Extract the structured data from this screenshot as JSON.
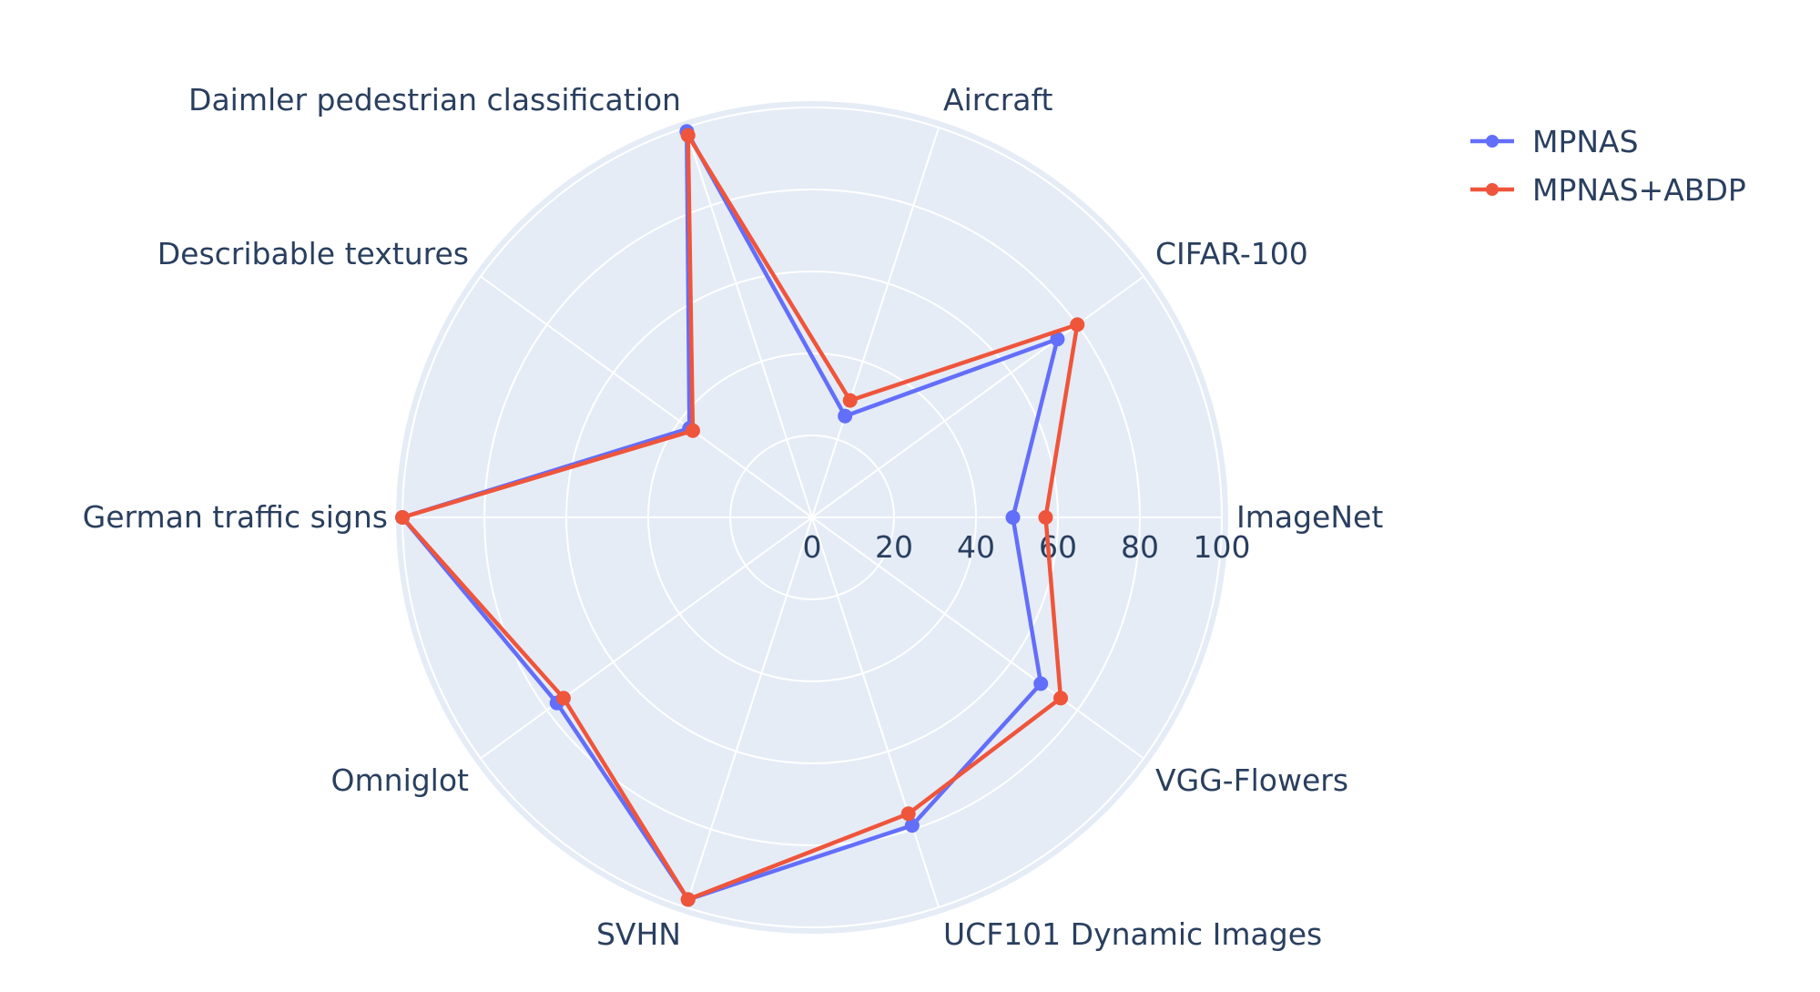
{
  "chart_data": {
    "type": "radar",
    "theta_labels": [
      "ImageNet",
      "CIFAR-100",
      "Aircraft",
      "Daimler pedestrian classification",
      "Describable textures",
      "German traffic signs",
      "Omniglot",
      "SVHN",
      "UCF101 Dynamic Images",
      "VGG-Flowers"
    ],
    "radial_ticks": [
      "0",
      "20",
      "40",
      "60",
      "80",
      "100"
    ],
    "radial_range": [
      0,
      100
    ],
    "series": [
      {
        "name": "MPNAS",
        "color": "#636efa",
        "values": [
          49,
          74,
          26,
          99,
          37,
          100,
          77,
          98,
          79,
          69
        ]
      },
      {
        "name": "MPNAS+ABDP",
        "color": "#ef553b",
        "values": [
          57,
          80,
          30,
          98,
          36,
          100,
          75,
          98,
          76,
          75
        ]
      }
    ],
    "legend_position": "top-right",
    "grid": true
  }
}
